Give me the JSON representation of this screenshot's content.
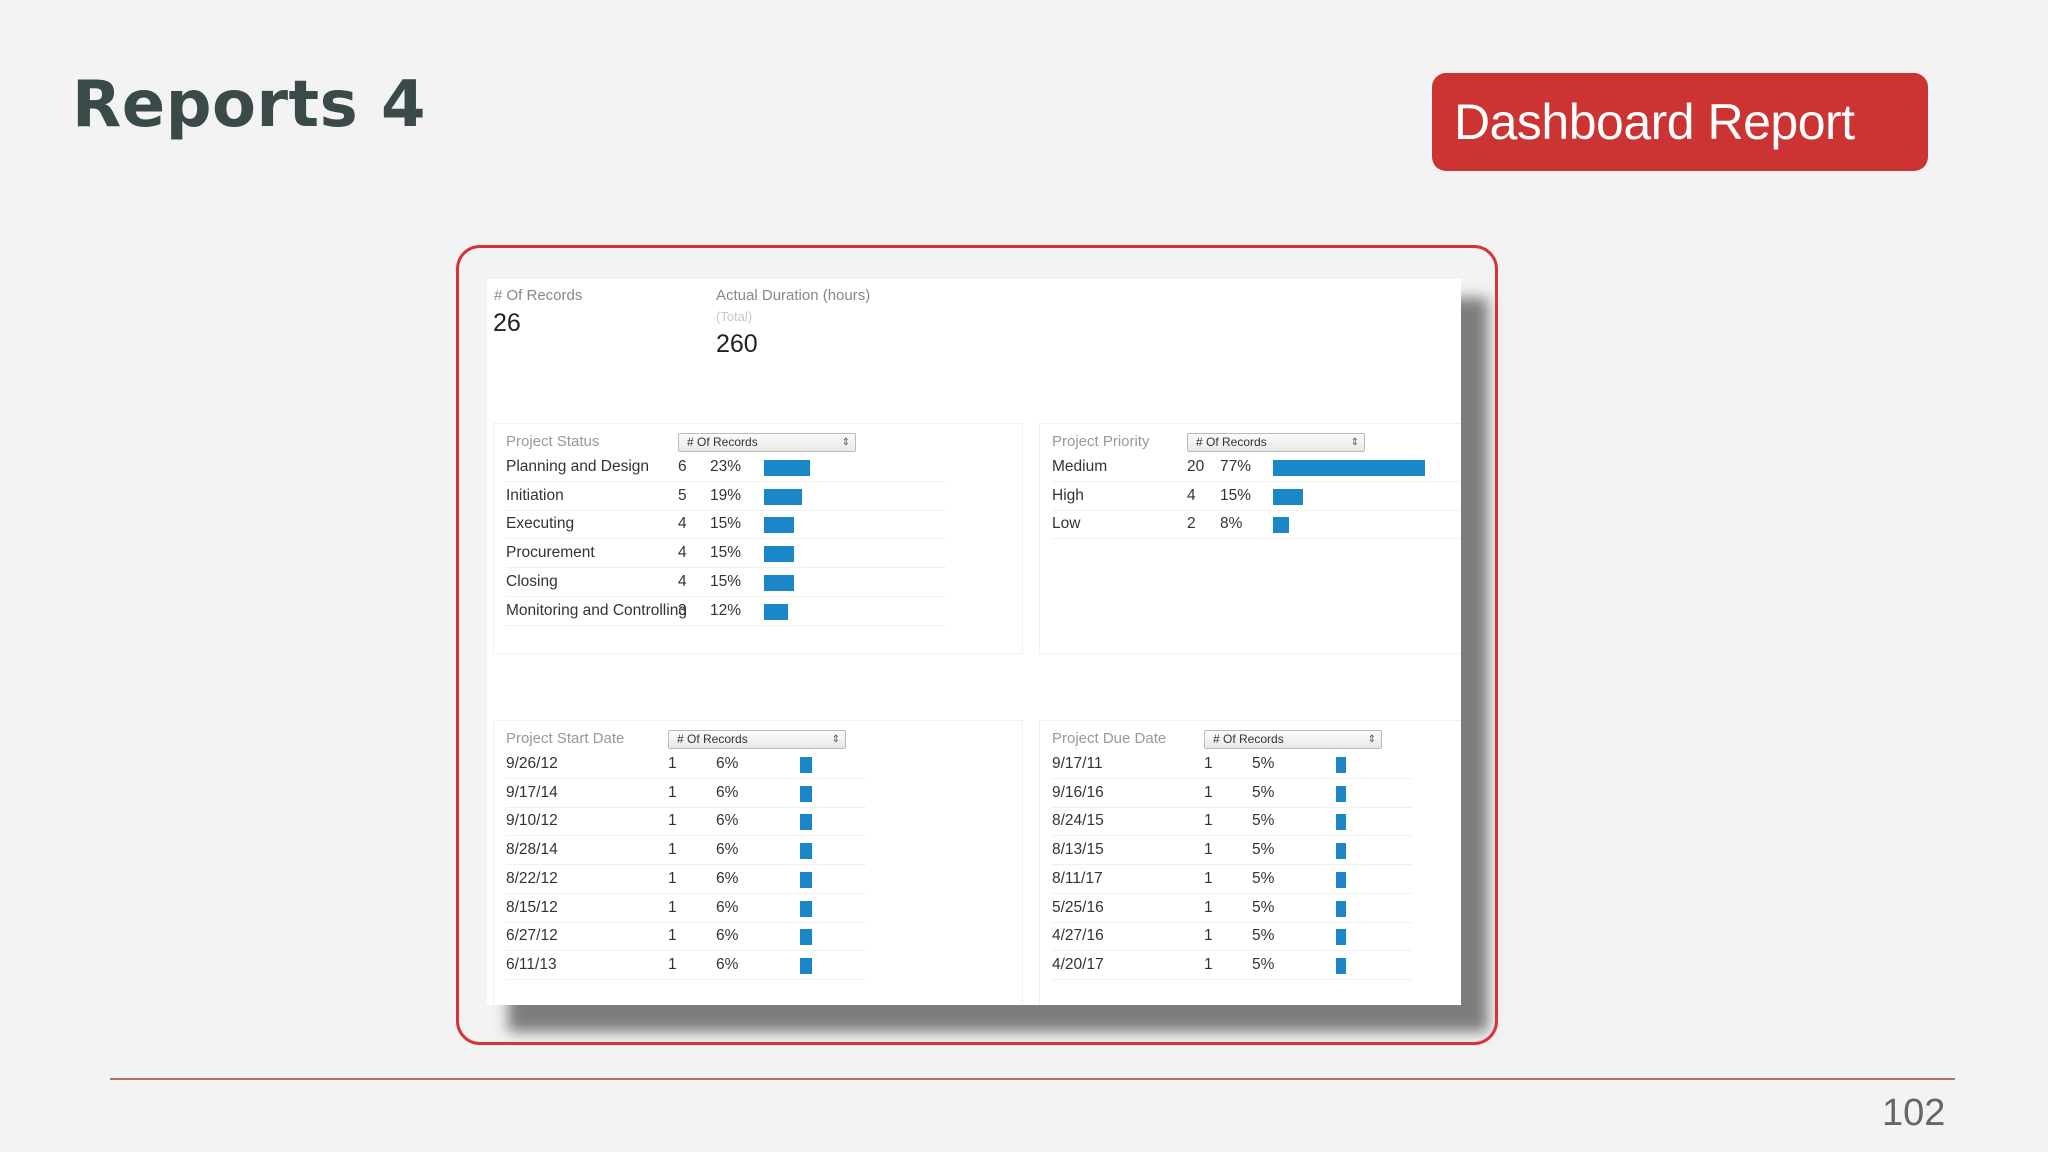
{
  "slide": {
    "title": "Reports 4",
    "badge": "Dashboard Report",
    "page_number": "102"
  },
  "kpis": {
    "records_label": "# Of Records",
    "records_value": "26",
    "duration_label": "Actual Duration (hours)",
    "duration_sub": "(Total)",
    "duration_value": "260"
  },
  "colors": {
    "bar": "#1b87c9",
    "accent": "#cc3333"
  },
  "panels": {
    "status": {
      "title": "Project Status",
      "select": "# Of Records",
      "rows": [
        {
          "label": "Planning and Design",
          "count": "6",
          "pct": "23%",
          "share": 0.23
        },
        {
          "label": "Initiation",
          "count": "5",
          "pct": "19%",
          "share": 0.19
        },
        {
          "label": "Executing",
          "count": "4",
          "pct": "15%",
          "share": 0.15
        },
        {
          "label": "Procurement",
          "count": "4",
          "pct": "15%",
          "share": 0.15
        },
        {
          "label": "Closing",
          "count": "4",
          "pct": "15%",
          "share": 0.15
        },
        {
          "label": "Monitoring and Controlling",
          "count": "3",
          "pct": "12%",
          "share": 0.12
        }
      ]
    },
    "priority": {
      "title": "Project Priority",
      "select": "# Of Records",
      "rows": [
        {
          "label": "Medium",
          "count": "20",
          "pct": "77%",
          "share": 0.77
        },
        {
          "label": "High",
          "count": "4",
          "pct": "15%",
          "share": 0.15
        },
        {
          "label": "Low",
          "count": "2",
          "pct": "8%",
          "share": 0.08
        }
      ]
    },
    "start": {
      "title": "Project Start Date",
      "select": "# Of Records",
      "rows": [
        {
          "label": "9/26/12",
          "count": "1",
          "pct": "6%",
          "share": 0.06
        },
        {
          "label": "9/17/14",
          "count": "1",
          "pct": "6%",
          "share": 0.06
        },
        {
          "label": "9/10/12",
          "count": "1",
          "pct": "6%",
          "share": 0.06
        },
        {
          "label": "8/28/14",
          "count": "1",
          "pct": "6%",
          "share": 0.06
        },
        {
          "label": "8/22/12",
          "count": "1",
          "pct": "6%",
          "share": 0.06
        },
        {
          "label": "8/15/12",
          "count": "1",
          "pct": "6%",
          "share": 0.06
        },
        {
          "label": "6/27/12",
          "count": "1",
          "pct": "6%",
          "share": 0.06
        },
        {
          "label": "6/11/13",
          "count": "1",
          "pct": "6%",
          "share": 0.06
        }
      ]
    },
    "due": {
      "title": "Project Due Date",
      "select": "# Of Records",
      "rows": [
        {
          "label": "9/17/11",
          "count": "1",
          "pct": "5%",
          "share": 0.05
        },
        {
          "label": "9/16/16",
          "count": "1",
          "pct": "5%",
          "share": 0.05
        },
        {
          "label": "8/24/15",
          "count": "1",
          "pct": "5%",
          "share": 0.05
        },
        {
          "label": "8/13/15",
          "count": "1",
          "pct": "5%",
          "share": 0.05
        },
        {
          "label": "8/11/17",
          "count": "1",
          "pct": "5%",
          "share": 0.05
        },
        {
          "label": "5/25/16",
          "count": "1",
          "pct": "5%",
          "share": 0.05
        },
        {
          "label": "4/27/16",
          "count": "1",
          "pct": "5%",
          "share": 0.05
        },
        {
          "label": "4/20/17",
          "count": "1",
          "pct": "5%",
          "share": 0.05
        }
      ]
    }
  }
}
